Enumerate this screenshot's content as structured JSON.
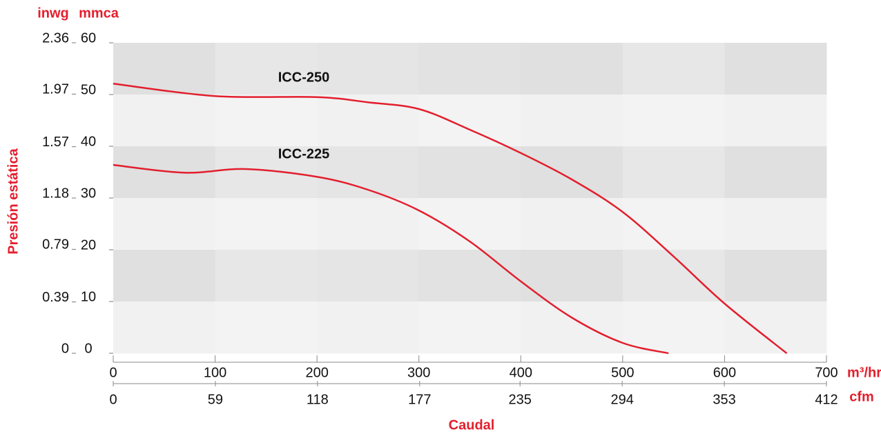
{
  "chart_data": {
    "type": "line",
    "xlabel": "Caudal",
    "ylabel": "Presión estática",
    "x_unit": "m³/hr",
    "x2_unit": "cfm",
    "y_unit": "mmca",
    "y2_unit": "inwg",
    "xlim": [
      0,
      700
    ],
    "xticks": [
      0,
      100,
      200,
      300,
      400,
      500,
      600,
      700
    ],
    "x2lim": [
      0,
      412
    ],
    "x2ticks": [
      0,
      59,
      118,
      177,
      235,
      294,
      353,
      412
    ],
    "ylim": [
      0,
      60
    ],
    "yticks": [
      0,
      10,
      20,
      30,
      40,
      50,
      60
    ],
    "y2lim": [
      0,
      2.36
    ],
    "y2ticks": [
      0,
      0.39,
      0.79,
      1.18,
      1.57,
      1.97,
      2.36
    ],
    "series": [
      {
        "name": "ICC-250",
        "color": "#e31e2d",
        "x": [
          0,
          100,
          200,
          250,
          300,
          350,
          400,
          450,
          500,
          550,
          600,
          661
        ],
        "values": [
          52.1,
          49.7,
          49.5,
          48.5,
          47.2,
          43.2,
          38.7,
          33.6,
          27.3,
          18.7,
          9.6,
          0
        ]
      },
      {
        "name": "ICC-225",
        "color": "#e31e2d",
        "x": [
          0,
          70,
          130,
          200,
          250,
          300,
          350,
          400,
          450,
          500,
          545
        ],
        "values": [
          36.4,
          34.9,
          35.6,
          34.1,
          31.6,
          27.6,
          21.6,
          13.9,
          6.9,
          2.0,
          0
        ]
      }
    ]
  }
}
